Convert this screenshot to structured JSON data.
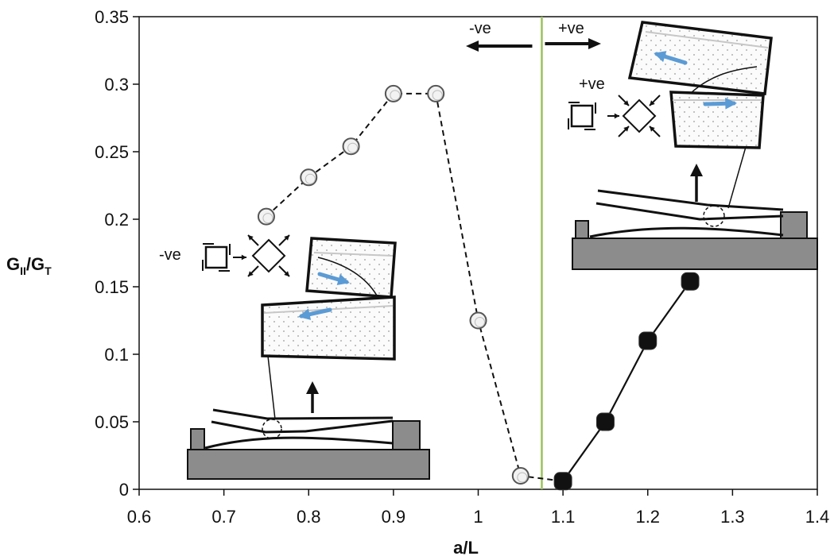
{
  "chart_data": {
    "type": "scatter",
    "xlabel": "a/L",
    "ylabel": {
      "base": "G",
      "sub": "II",
      "sep": "/G",
      "sub2": "T"
    },
    "xlim": [
      0.6,
      1.4
    ],
    "ylim": [
      0,
      0.35
    ],
    "xticks": [
      "0.6",
      "0.7",
      "0.8",
      "0.9",
      "1",
      "1.1",
      "1.2",
      "1.3",
      "1.4"
    ],
    "yticks": [
      "0",
      "0.05",
      "0.1",
      "0.15",
      "0.2",
      "0.25",
      "0.3",
      "0.35"
    ],
    "grid": false,
    "legend": "none",
    "divider_x": 1.075,
    "series": [
      {
        "style": "open-circle-dashed",
        "points": [
          [
            0.75,
            0.202
          ],
          [
            0.8,
            0.231
          ],
          [
            0.85,
            0.254
          ],
          [
            0.9,
            0.293
          ],
          [
            0.95,
            0.293
          ],
          [
            1.0,
            0.125
          ],
          [
            1.05,
            0.01
          ],
          [
            1.1,
            0.006
          ]
        ]
      },
      {
        "style": "filled-square-solid",
        "points": [
          [
            1.1,
            0.006
          ],
          [
            1.15,
            0.05
          ],
          [
            1.2,
            0.11
          ],
          [
            1.25,
            0.154
          ]
        ]
      }
    ],
    "annotations": {
      "neg": "-ve",
      "pos": "+ve",
      "neg_inset": "-ve",
      "pos_inset": "+ve"
    }
  },
  "colors": {
    "axis": "#111111",
    "divider": "#9bc25b",
    "arrow_blue": "#5b9bd5",
    "base_grey": "#8c8c8c",
    "marker_fill_open": "#f2f2f2",
    "marker_fill_solid": "#111111"
  }
}
